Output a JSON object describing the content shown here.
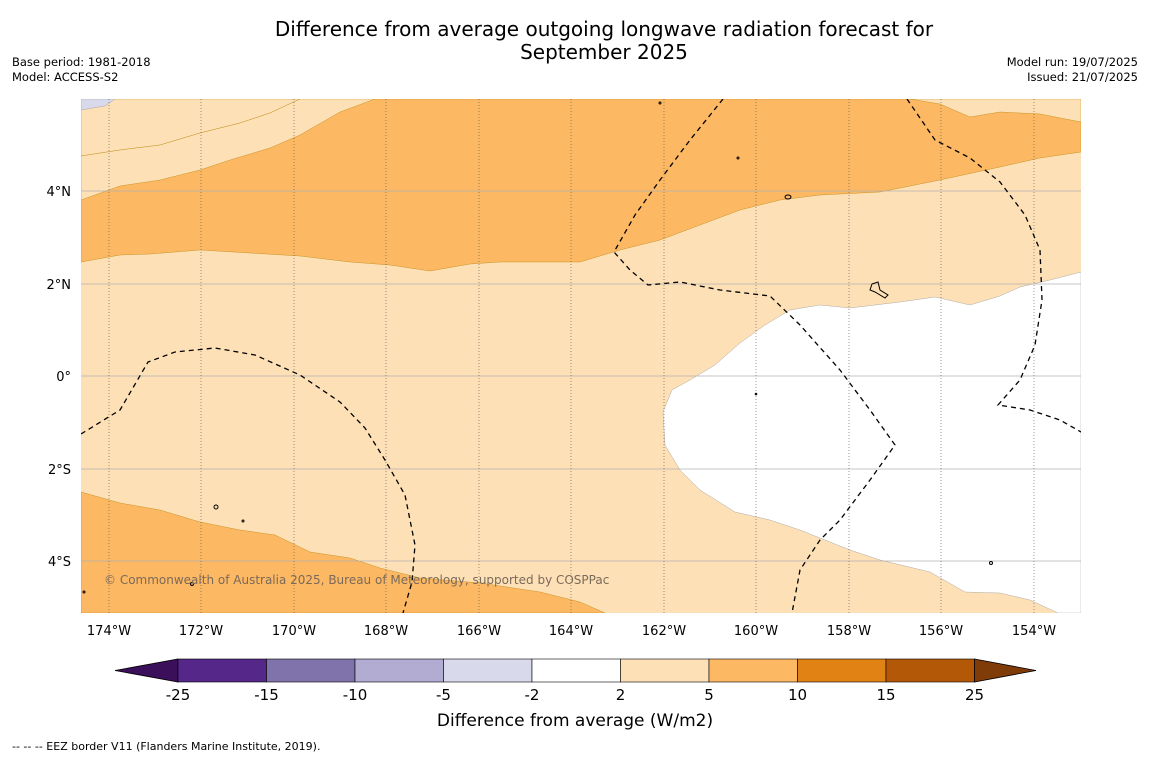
{
  "title_line1": "Difference from average outgoing longwave radiation forecast for",
  "title_line2": "September 2025",
  "base_period": "Base period: 1981-2018",
  "model": "Model: ACCESS-S2",
  "model_run": "Model run: 19/07/2025",
  "issued": "Issued: 21/07/2025",
  "copyright": "© Commonwealth of Australia 2025, Bureau of Meteorology, supported by COSPPac",
  "lat_labels": [
    "4°N",
    "2°N",
    "0°",
    "2°S",
    "4°S"
  ],
  "lon_labels": [
    "174°W",
    "172°W",
    "170°W",
    "168°W",
    "166°W",
    "164°W",
    "162°W",
    "160°W",
    "158°W",
    "156°W",
    "154°W"
  ],
  "colorbar": {
    "title": "Difference from average (W/m2)",
    "ticks": [
      "-25",
      "-15",
      "-10",
      "-5",
      "-2",
      "2",
      "5",
      "10",
      "15",
      "25"
    ],
    "colors": [
      "#3b0f5a",
      "#542788",
      "#8073ac",
      "#b2abd2",
      "#d8daeb",
      "#ffffff",
      "#fee0b6",
      "#fdb863",
      "#e08214",
      "#b35806",
      "#7f3b08"
    ]
  },
  "footnote": "--  --  -- EEZ border V11 (Flanders Marine Institute, 2019)."
}
